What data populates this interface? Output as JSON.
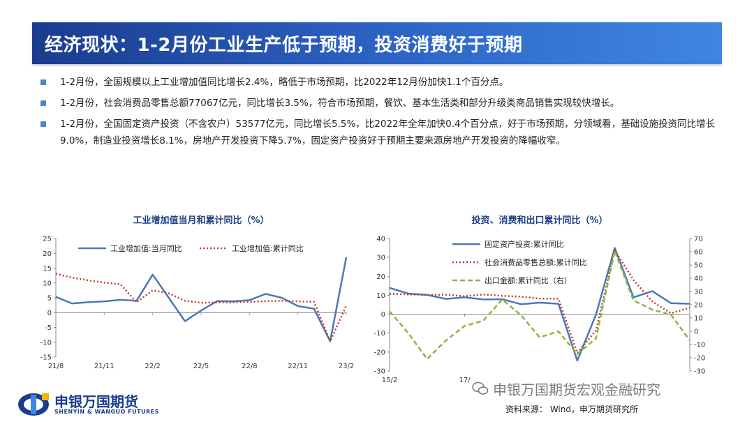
{
  "title": "经济现状：1-2月份工业生产低于预期，投资消费好于预期",
  "bullets": [
    "1-2月份，全国规模以上工业增加值同比增长2.4%，略低于市场预期，比2022年12月份加快1.1个百分点。",
    "1-2月份，社会消费品零售总额77067亿元，同比增长3.5%，符合市场预期，餐饮、基本生活类和部分升级类商品销售实现较快增长。",
    "1-2月份，全国固定资产投资（不含农户）53577亿元，同比增长5.5%，比2022年全年加快0.4个百分点，好于市场预期，分领域看，基础设施投资同比增长9.0%，制造业投资增长8.1%，房地产开发投资下降5.7%，固定资产投资好于预期主要来源房地产开发投资的降幅收窄。"
  ],
  "colors": {
    "blue": "#4a78b8",
    "red": "#c0392b",
    "green": "#8bb640",
    "title_bar": "#2e66c7"
  },
  "chart_data": [
    {
      "type": "line",
      "title": "工业增加值当月和累计同比（%）",
      "x": [
        "21/8",
        "21/9",
        "21/10",
        "21/11",
        "21/12",
        "22/1",
        "22/2",
        "22/3",
        "22/4",
        "22/5",
        "22/6",
        "22/7",
        "22/8",
        "22/9",
        "22/10",
        "22/11",
        "22/12",
        "23/1",
        "23/2"
      ],
      "xticks": [
        "21/8",
        "21/11",
        "22/2",
        "22/5",
        "22/8",
        "22/11",
        "23/2"
      ],
      "ylim": [
        -15,
        25
      ],
      "yticks": [
        -15,
        -10,
        -5,
        0,
        5,
        10,
        15,
        20,
        25
      ],
      "legend_position": "top",
      "series": [
        {
          "name": "工业增加值:当月同比",
          "color": "#4a78b8",
          "dash": "",
          "values": [
            5.3,
            3.1,
            3.5,
            3.8,
            4.3,
            4.0,
            12.8,
            5.0,
            -2.9,
            0.7,
            3.9,
            3.8,
            4.2,
            6.3,
            5.0,
            2.2,
            1.3,
            -9.7,
            18.7
          ]
        },
        {
          "name": "工业增加值:累计同比",
          "color": "#c0392b",
          "dash": "2,3",
          "values": [
            13.1,
            11.8,
            10.9,
            10.1,
            9.6,
            3.5,
            7.5,
            6.5,
            4.0,
            3.3,
            3.4,
            3.5,
            3.6,
            3.9,
            4.0,
            3.8,
            3.6,
            -9.7,
            2.4
          ]
        }
      ]
    },
    {
      "type": "line",
      "title": "投资、消费和出口累计同比（%）",
      "x": [
        "15/2",
        "15/8",
        "16/2",
        "16/8",
        "17/2",
        "17/8",
        "18/2",
        "18/8",
        "19/2",
        "19/8",
        "20/2",
        "20/8",
        "21/2",
        "21/8",
        "22/2",
        "22/8",
        "23/2"
      ],
      "xticks": [
        "15/2",
        "17/"
      ],
      "ylim": [
        -30,
        40
      ],
      "yticks": [
        -30,
        -20,
        -10,
        0,
        10,
        20,
        30,
        40
      ],
      "y2lim": [
        -30,
        70
      ],
      "y2ticks": [
        -30,
        -20,
        -10,
        0,
        10,
        20,
        30,
        40,
        50,
        60,
        70
      ],
      "legend_position": "top",
      "series": [
        {
          "name": "固定资产投资:累计同比",
          "color": "#4a78b8",
          "dash": "",
          "axis": "left",
          "values": [
            13.9,
            10.9,
            10.2,
            8.1,
            8.9,
            7.8,
            7.9,
            5.3,
            6.1,
            5.5,
            -24.5,
            -0.3,
            35.0,
            8.9,
            12.2,
            5.8,
            5.5
          ]
        },
        {
          "name": "社会消费品零售总额:累计同比",
          "color": "#c0392b",
          "dash": "2,3",
          "axis": "left",
          "values": [
            10.7,
            10.5,
            10.2,
            10.3,
            9.5,
            10.4,
            9.7,
            9.3,
            8.2,
            8.2,
            -20.5,
            -8.6,
            33.8,
            18.1,
            6.7,
            0.5,
            3.5
          ]
        },
        {
          "name": "出口金额:累计同比（右）",
          "color": "#8bb640",
          "dash": "7,4",
          "axis": "right",
          "values": [
            15.0,
            -1.5,
            -21.0,
            -7.0,
            4.0,
            8.0,
            24.0,
            12.2,
            -4.6,
            -0.1,
            -17.2,
            -5.5,
            60.6,
            23.2,
            16.3,
            12.5,
            -6.8
          ]
        }
      ]
    }
  ],
  "logo": {
    "main": "申银万国期货",
    "sub": "SHENYIN & WANGUO FUTURES"
  },
  "source": "资料来源： Wind，申万期货研究所",
  "watermark": "申银万国期货宏观金融研究"
}
